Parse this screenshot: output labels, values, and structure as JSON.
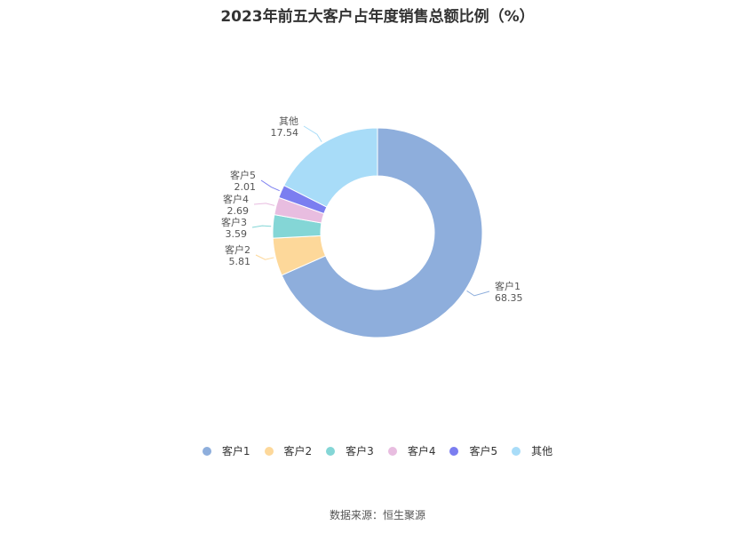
{
  "chart_data": {
    "type": "pie",
    "title": "2023年前五大客户占年度销售总额比例（%）",
    "categories": [
      "客户1",
      "客户2",
      "客户3",
      "客户4",
      "客户5",
      "其他"
    ],
    "values": [
      68.35,
      5.81,
      3.59,
      2.69,
      2.01,
      17.54
    ],
    "value_labels": [
      "68.35",
      "5.81",
      "3.59",
      "2.69",
      "2.01",
      "17.54"
    ],
    "colors": [
      "#8eaedc",
      "#fdd89a",
      "#84d6d6",
      "#e8bde0",
      "#7b7ef0",
      "#a8dcf8"
    ],
    "donut": true,
    "legend_position": "bottom"
  },
  "footer": {
    "source": "数据来源：恒生聚源"
  }
}
